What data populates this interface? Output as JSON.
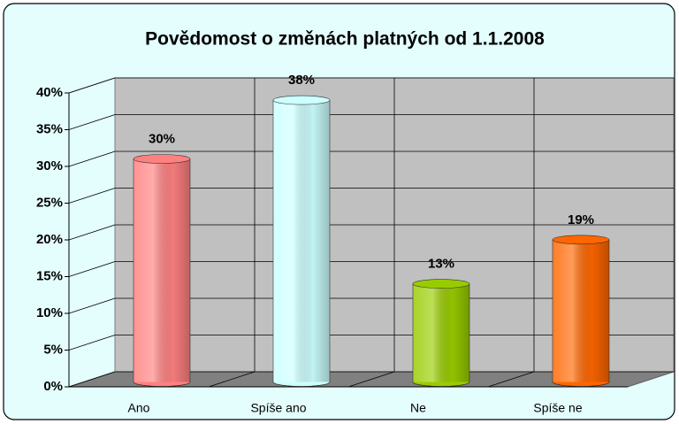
{
  "chart_data": {
    "type": "bar3d-cylinder",
    "title": "Povědomost o změnách platných od 1.1.2008",
    "categories": [
      "Ano",
      "Spíše ano",
      "Ne",
      "Spíše ne"
    ],
    "values": [
      30,
      38,
      13,
      19
    ],
    "value_labels": [
      "30%",
      "38%",
      "13%",
      "19%"
    ],
    "colors": [
      "#ff8080",
      "#ccffff",
      "#99cc00",
      "#ff6600"
    ],
    "ylim": [
      0,
      40
    ],
    "yticks": [
      {
        "value": 0,
        "label": "0%"
      },
      {
        "value": 5,
        "label": "5%"
      },
      {
        "value": 10,
        "label": "10%"
      },
      {
        "value": 15,
        "label": "15%"
      },
      {
        "value": 20,
        "label": "20%"
      },
      {
        "value": 25,
        "label": "25%"
      },
      {
        "value": 30,
        "label": "30%"
      },
      {
        "value": 35,
        "label": "35%"
      },
      {
        "value": 40,
        "label": "40%"
      }
    ],
    "grid": true
  }
}
